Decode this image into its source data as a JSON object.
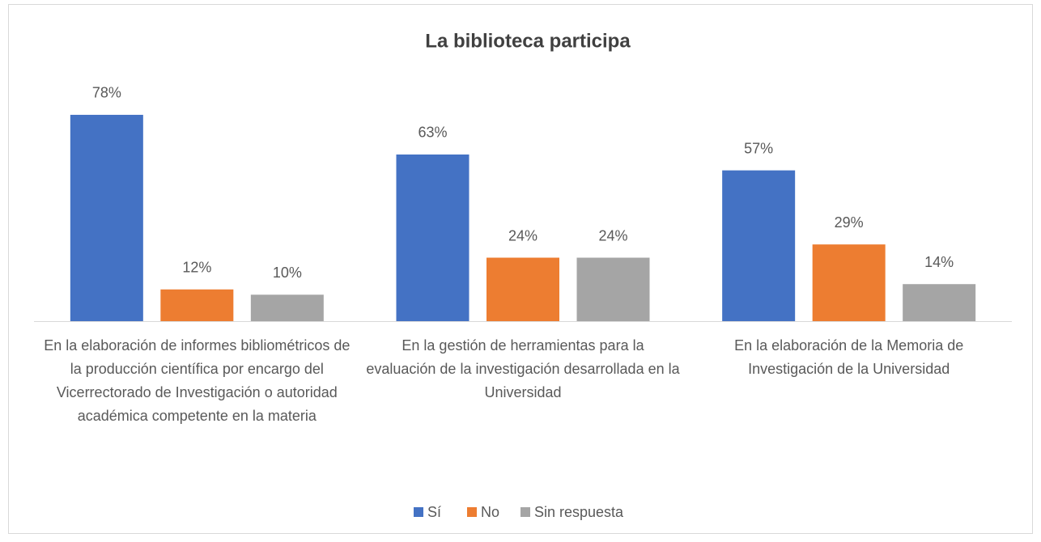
{
  "chart_data": {
    "type": "bar",
    "title": "La biblioteca participa",
    "categories": [
      "En la elaboración de informes bibliométricos de la producción científica por encargo del Vicerrectorado de Investigación o autoridad académica competente en la materia",
      "En la gestión de herramientas para la evaluación de la investigación desarrollada en la Universidad",
      "En la elaboración de la Memoria de Investigación de la Universidad"
    ],
    "series": [
      {
        "name": "Sí",
        "color": "#4472c4",
        "values": [
          78,
          63,
          57
        ],
        "value_labels": [
          "78%",
          "63%",
          "57%"
        ]
      },
      {
        "name": "No",
        "color": "#ed7d31",
        "values": [
          12,
          24,
          29
        ],
        "value_labels": [
          "12%",
          "24%",
          "29%"
        ]
      },
      {
        "name": "Sin respuesta",
        "color": "#a5a5a5",
        "values": [
          10,
          24,
          14
        ],
        "value_labels": [
          "10%",
          "24%",
          "14%"
        ]
      }
    ],
    "legend": "bottom"
  }
}
